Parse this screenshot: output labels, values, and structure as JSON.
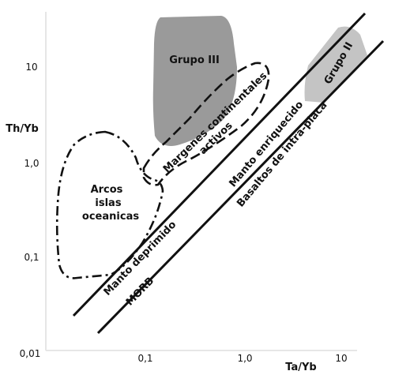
{
  "axes": {
    "x_label": "Ta/Yb",
    "y_label": "Th/Yb",
    "x_ticks": [
      "0,1",
      "1,0",
      "10"
    ],
    "y_ticks": [
      "0,01",
      "0,1",
      "1,0",
      "10"
    ]
  },
  "fields": {
    "grupo_iii": "Grupo III",
    "grupo_ii": "Grupo II",
    "arcos": [
      "Arcos",
      "islas",
      "oceanicas"
    ],
    "margenes": [
      "Margenes continentales",
      "activos"
    ]
  },
  "lines": {
    "manto_deprimido": "Manto deprimido",
    "manto_enriquecido": "Manto enriquecido",
    "basaltos": "Basaltos de intra-placa",
    "morb": "MORB"
  },
  "colors": {
    "shade_dark": "#9a9a9a",
    "shade_light": "#c4c4c4",
    "ink": "#111111",
    "axis": "#e6e6e6"
  }
}
